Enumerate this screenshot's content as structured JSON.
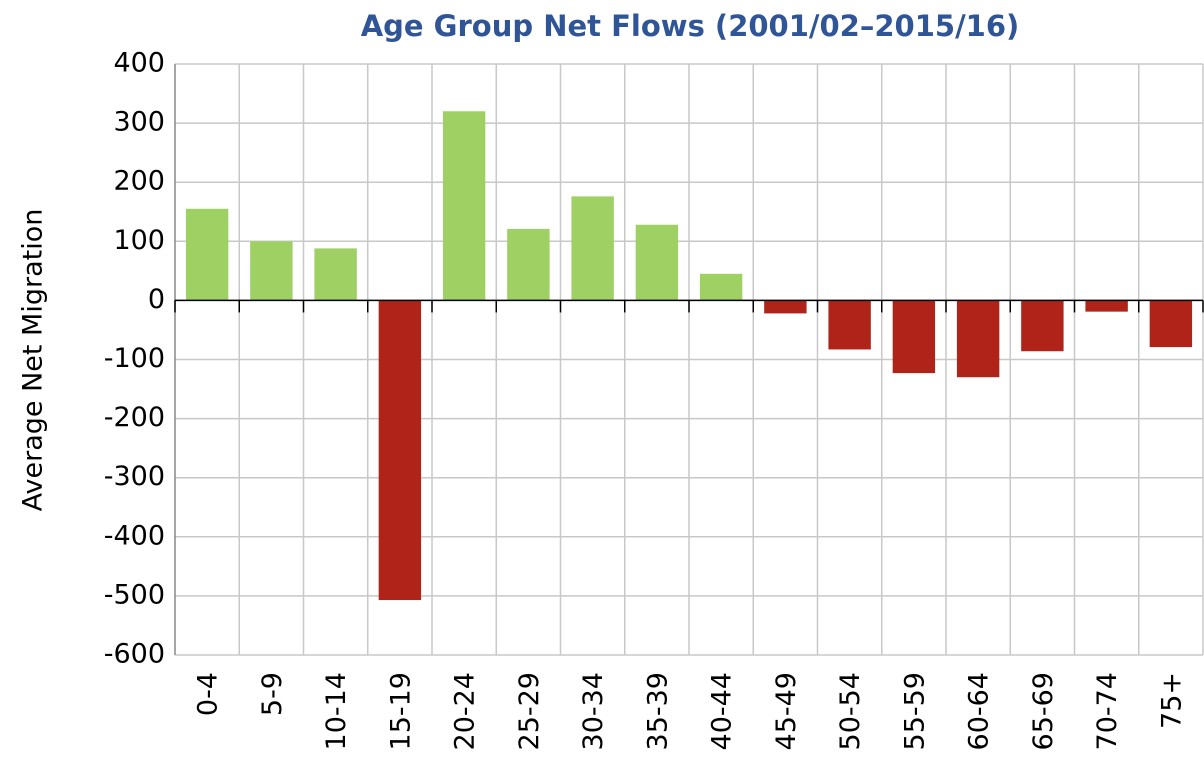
{
  "chart_data": {
    "type": "bar",
    "title": "Age Group Net Flows (2001/02–2015/16)",
    "y_label": "Average Net Migration",
    "categories": [
      "0-4",
      "5-9",
      "10-14",
      "15-19",
      "20-24",
      "25-29",
      "30-34",
      "35-39",
      "40-44",
      "45-49",
      "50-54",
      "55-59",
      "60-64",
      "65-69",
      "70-74",
      "75+"
    ],
    "values": [
      155,
      100,
      88,
      -507,
      320,
      121,
      176,
      128,
      45,
      -22,
      -83,
      -123,
      -130,
      -86,
      -19,
      -79
    ],
    "colors": [
      "#9ed064",
      "#9ed064",
      "#9ed064",
      "#b02318",
      "#9ed064",
      "#9ed064",
      "#9ed064",
      "#9ed064",
      "#9ed064",
      "#b02318",
      "#b02318",
      "#b02318",
      "#b02318",
      "#b02318",
      "#b02318",
      "#b02318"
    ],
    "ylim": [
      -600,
      400
    ],
    "yticks": [
      -600,
      -500,
      -400,
      -300,
      -200,
      -100,
      0,
      100,
      200,
      300,
      400
    ],
    "grid": true
  }
}
